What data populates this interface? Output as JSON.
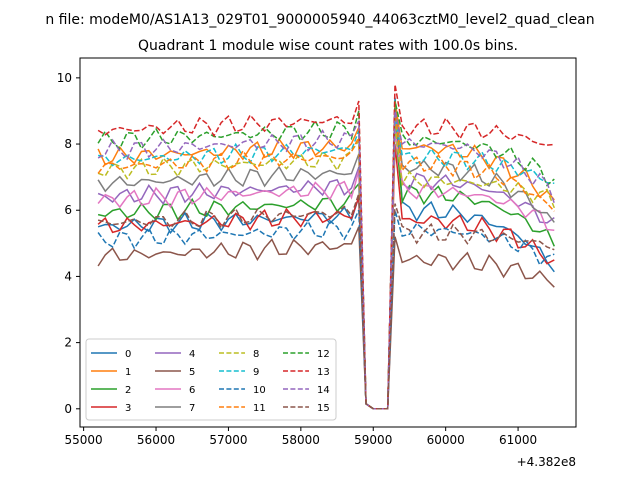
{
  "figure": {
    "suptitle": "n file: modeM0/AS1A13_029T01_9000005940_44063cztM0_level2_quad_clean",
    "offset_label": "+4.382e8"
  },
  "chart_data": {
    "type": "line",
    "title": "Quadrant 1 module wise count rates with 100.0s bins.",
    "xlabel": "",
    "ylabel": "",
    "x_offset": 438200000,
    "xlim": [
      54950,
      61800
    ],
    "ylim": [
      -0.55,
      10.6
    ],
    "xticks": [
      55000,
      56000,
      57000,
      58000,
      59000,
      60000,
      61000
    ],
    "xtick_labels": [
      "55000",
      "56000",
      "57000",
      "58000",
      "59000",
      "60000",
      "61000"
    ],
    "yticks": [
      0,
      2,
      4,
      6,
      8,
      10
    ],
    "ytick_labels": [
      "0",
      "2",
      "4",
      "6",
      "8",
      "10"
    ],
    "grid": false,
    "legend": {
      "placement": "lower-left",
      "columns": 4
    },
    "x_segments": [
      {
        "start": 55200,
        "end": 58800,
        "step": 100
      },
      {
        "start": 58900,
        "end": 59200,
        "step": 100
      },
      {
        "start": 59300,
        "end": 61500,
        "step": 100
      }
    ],
    "gap_values": [
      0.15,
      0.0,
      0.0
    ],
    "series": [
      {
        "name": "0",
        "color": "#1f77b4",
        "style": "solid",
        "before": 5.5,
        "peak": 9.4,
        "after": 6.0,
        "end": 4.3
      },
      {
        "name": "1",
        "color": "#ff7f0e",
        "style": "solid",
        "before": 7.6,
        "peak": 9.3,
        "after": 7.9,
        "end": 6.2
      },
      {
        "name": "2",
        "color": "#2ca02c",
        "style": "solid",
        "before": 5.9,
        "peak": 8.6,
        "after": 6.5,
        "end": 5.0
      },
      {
        "name": "3",
        "color": "#d62728",
        "style": "solid",
        "before": 5.5,
        "peak": 8.0,
        "after": 5.7,
        "end": 4.4
      },
      {
        "name": "4",
        "color": "#9467bd",
        "style": "solid",
        "before": 6.4,
        "peak": 8.5,
        "after": 6.9,
        "end": 5.5
      },
      {
        "name": "5",
        "color": "#8c564b",
        "style": "solid",
        "before": 4.6,
        "peak": 5.2,
        "after": 4.5,
        "end": 3.8
      },
      {
        "name": "6",
        "color": "#e377c2",
        "style": "solid",
        "before": 6.3,
        "peak": 8.4,
        "after": 6.6,
        "end": 5.5
      },
      {
        "name": "7",
        "color": "#7f7f7f",
        "style": "solid",
        "before": 6.8,
        "peak": 9.1,
        "after": 7.3,
        "end": 5.6
      },
      {
        "name": "8",
        "color": "#bcbd22",
        "style": "dashed",
        "before": 7.2,
        "peak": 8.6,
        "after": 6.9,
        "end": 6.3
      },
      {
        "name": "9",
        "color": "#17becf",
        "style": "dashed",
        "before": 7.5,
        "peak": 8.8,
        "after": 7.6,
        "end": 6.8
      },
      {
        "name": "10",
        "color": "#1f77b4",
        "style": "dashed",
        "before": 5.1,
        "peak": 6.0,
        "after": 5.4,
        "end": 4.4
      },
      {
        "name": "11",
        "color": "#ff7f0e",
        "style": "dashed",
        "before": 7.3,
        "peak": 9.0,
        "after": 7.4,
        "end": 6.0
      },
      {
        "name": "12",
        "color": "#2ca02c",
        "style": "dashed",
        "before": 8.1,
        "peak": 9.3,
        "after": 8.1,
        "end": 6.9
      },
      {
        "name": "13",
        "color": "#d62728",
        "style": "dashed",
        "before": 8.4,
        "peak": 9.8,
        "after": 8.5,
        "end": 7.9
      },
      {
        "name": "14",
        "color": "#9467bd",
        "style": "dashed",
        "before": 7.8,
        "peak": 9.0,
        "after": 8.0,
        "end": 6.5
      },
      {
        "name": "15",
        "color": "#8c564b",
        "style": "dashed",
        "before": 5.6,
        "peak": 6.2,
        "after": 5.3,
        "end": 4.9
      }
    ]
  }
}
